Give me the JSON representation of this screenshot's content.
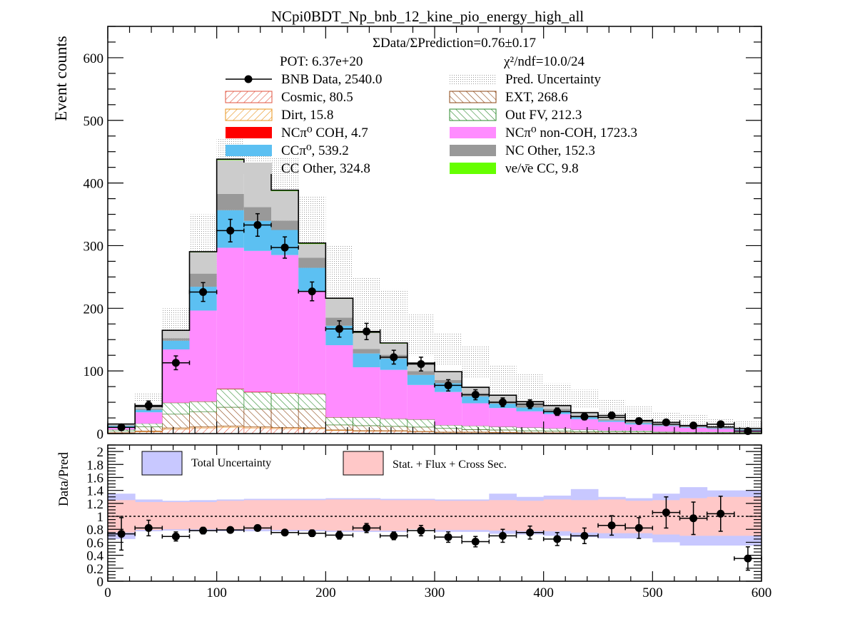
{
  "chart_data": [
    {
      "type": "bar",
      "stacked": true,
      "title": "NCpi0BDT_Np_bnb_12_kine_pio_energy_high_all",
      "ylabel": "Event counts",
      "xlim": [
        0,
        600
      ],
      "ylim": [
        0,
        650
      ],
      "x_ticks": [
        "0",
        "100",
        "200",
        "300",
        "400",
        "500",
        "600"
      ],
      "y_ticks": [
        "0",
        "100",
        "200",
        "300",
        "400",
        "500",
        "600"
      ],
      "bin_edges": [
        0,
        25,
        50,
        75,
        100,
        125,
        150,
        175,
        200,
        225,
        250,
        275,
        300,
        325,
        350,
        375,
        400,
        425,
        450,
        475,
        500,
        525,
        550,
        575,
        600
      ],
      "annotations": {
        "ratio": "ΣData/ΣPrediction=0.76±0.17",
        "pot": "POT: 6.37e+20",
        "chi2": "χ²/ndf=10.0/24"
      },
      "series": [
        {
          "name": "Cosmic, 80.5",
          "legend": "Cosmic, 80.5",
          "color": "#e0533f",
          "hatch": true,
          "values": [
            1,
            3,
            7,
            9,
            10,
            9,
            8,
            8,
            5,
            4,
            4,
            3,
            2,
            2,
            1.5,
            1.2,
            1,
            0.8,
            0.6,
            0.5,
            0.4,
            0.3,
            0.3,
            0.2
          ]
        },
        {
          "name": "Dirt, 15.8",
          "legend": "Dirt, 15.8",
          "color": "#e8941e",
          "hatch": true,
          "values": [
            0.3,
            1,
            2,
            2,
            2,
            2,
            1.5,
            1.2,
            0.8,
            0.6,
            0.5,
            0.4,
            0.3,
            0.3,
            0.2,
            0.2,
            0.1,
            0.1,
            0.1,
            0.1,
            0.1,
            0.1,
            0.1,
            0.1
          ]
        },
        {
          "name": "EXT, 268.6",
          "legend": "EXT, 268.6",
          "color": "#8b4513",
          "hatch": true,
          "values": [
            3,
            7,
            22,
            24,
            30,
            28,
            30,
            30,
            8,
            8,
            7,
            7,
            6,
            4,
            4,
            3,
            3,
            2,
            2,
            2,
            1.5,
            1,
            1,
            1
          ]
        },
        {
          "name": "Out FV, 212.3",
          "legend": "Out FV, 212.3",
          "color": "#2e8b2e",
          "hatch": true,
          "values": [
            2,
            5,
            18,
            16,
            29,
            27,
            25,
            24,
            12,
            13,
            12,
            12,
            5,
            6,
            5,
            5,
            4,
            3,
            2,
            2,
            1,
            1,
            1,
            1
          ]
        },
        {
          "name": "NCπ⁰ COH,  4.7",
          "legend": "NCπ⁰ COH,  4.7",
          "color": "#ff0000",
          "values": [
            0,
            0,
            0.3,
            0.4,
            0.6,
            0.6,
            0.5,
            0.4,
            0.3,
            0.3,
            0.2,
            0.2,
            0.1,
            0.1,
            0.1,
            0.1,
            0.1,
            0.1,
            0,
            0,
            0,
            0,
            0,
            0
          ]
        },
        {
          "name": "NCπ⁰ non-COH,  1723.3",
          "legend": "NCπ⁰ non-COH,  1723.3",
          "color": "#ff8cff",
          "values": [
            4,
            18,
            85,
            145,
            225,
            225,
            220,
            163,
            115,
            80,
            78,
            55,
            53,
            36,
            30,
            26,
            23,
            17,
            14,
            10,
            9,
            7,
            5,
            3
          ]
        },
        {
          "name": "CCπ⁰, 539.2",
          "legend": "CCπ⁰, 539.2",
          "color": "#5cc0f2",
          "values": [
            2,
            4,
            14,
            38,
            60,
            48,
            40,
            38,
            31,
            22,
            18,
            16,
            14,
            11,
            7,
            6,
            5,
            3,
            2,
            2,
            1,
            1,
            1,
            1
          ]
        },
        {
          "name": "NC Other, 152.3",
          "legend": "NC Other, 152.3",
          "color": "#999999",
          "values": [
            1,
            2,
            4,
            21,
            26,
            22,
            15,
            16,
            13,
            7,
            6,
            6,
            5,
            5,
            4,
            4,
            3,
            3,
            2,
            2,
            1,
            1,
            1,
            1
          ]
        },
        {
          "name": "CC Other, 324.8",
          "legend": "CC Other, 324.8",
          "color": "#cccccc",
          "values": [
            2,
            3,
            12,
            34,
            54,
            58,
            47,
            22,
            30,
            26,
            18,
            12,
            13,
            9,
            9,
            5,
            5,
            4,
            3,
            2,
            1,
            1,
            1,
            1
          ]
        },
        {
          "name": "νe/ν̄e CC, 9.8",
          "legend": "νe/ν̄e CC, 9.8",
          "color": "#66ff00",
          "values": [
            0,
            0.2,
            0.5,
            1,
            1.5,
            1.5,
            1.5,
            1.5,
            1,
            1,
            1,
            1,
            0.5,
            0.5,
            0.5,
            0.5,
            0.5,
            0.5,
            0.3,
            0.3,
            0.2,
            0.2,
            0.2,
            0.1
          ]
        }
      ],
      "uncertainty": {
        "name": "Pred. Uncertainty",
        "legend": "Pred. Uncertainty",
        "upper": [
          18,
          65,
          200,
          350,
          470,
          455,
          440,
          380,
          300,
          250,
          230,
          190,
          160,
          140,
          110,
          95,
          80,
          70,
          55,
          45,
          35,
          30,
          25,
          20
        ],
        "lower": [
          8,
          50,
          135,
          230,
          350,
          350,
          340,
          240,
          200,
          160,
          145,
          125,
          110,
          90,
          65,
          55,
          45,
          40,
          30,
          20,
          15,
          10,
          8,
          6
        ]
      },
      "data": {
        "name": "BNB Data, 2540.0",
        "legend": "BNB Data, 2540.0",
        "x": [
          12.5,
          37.5,
          62.5,
          87.5,
          112.5,
          137.5,
          162.5,
          187.5,
          212.5,
          237.5,
          262.5,
          287.5,
          312.5,
          337.5,
          362.5,
          387.5,
          412.5,
          437.5,
          462.5,
          487.5,
          512.5,
          537.5,
          562.5,
          587.5
        ],
        "y": [
          10,
          45,
          113,
          226,
          324,
          333,
          297,
          227,
          167,
          163,
          122,
          111,
          77,
          62,
          50,
          47,
          35,
          27,
          29,
          20,
          18,
          13,
          15,
          4
        ],
        "yerr": [
          3,
          7,
          11,
          15,
          18,
          18,
          17,
          15,
          13,
          13,
          11,
          11,
          9,
          8,
          7,
          7,
          6,
          5,
          5,
          4.5,
          4.5,
          3.5,
          3.9,
          2
        ]
      }
    },
    {
      "type": "scatter",
      "ylabel": "Data/Pred",
      "xlim": [
        0,
        600
      ],
      "ylim": [
        0,
        2.1
      ],
      "x_ticks": [
        "0",
        "100",
        "200",
        "300",
        "400",
        "500",
        "600"
      ],
      "y_ticks": [
        "0",
        "0.2",
        "0.4",
        "0.6",
        "0.8",
        "1",
        "1.2",
        "1.4",
        "1.6",
        "1.8",
        "2"
      ],
      "reference_line": 1,
      "bands": [
        {
          "name": "Total Uncertainty",
          "legend": "Total Uncertainty",
          "color": "#c8c8ff",
          "upper": [
            1.35,
            1.26,
            1.24,
            1.25,
            1.26,
            1.27,
            1.27,
            1.27,
            1.28,
            1.28,
            1.27,
            1.27,
            1.26,
            1.26,
            1.35,
            1.3,
            1.32,
            1.42,
            1.3,
            1.28,
            1.35,
            1.45,
            1.4,
            1.4
          ],
          "lower": [
            0.65,
            0.77,
            0.78,
            0.77,
            0.77,
            0.77,
            0.77,
            0.77,
            0.76,
            0.76,
            0.76,
            0.8,
            0.76,
            0.76,
            0.73,
            0.72,
            0.7,
            0.68,
            0.66,
            0.66,
            0.6,
            0.55,
            0.55,
            0.55
          ]
        },
        {
          "name": "Stat. + Flux + Cross Sec.",
          "legend": "Stat. + Flux + Cross Sec.",
          "color": "#ffc8c8",
          "upper": [
            1.25,
            1.22,
            1.22,
            1.22,
            1.24,
            1.25,
            1.25,
            1.25,
            1.26,
            1.26,
            1.25,
            1.25,
            1.24,
            1.24,
            1.25,
            1.24,
            1.26,
            1.25,
            1.26,
            1.24,
            1.25,
            1.28,
            1.3,
            1.3
          ],
          "lower": [
            0.75,
            0.79,
            0.8,
            0.8,
            0.8,
            0.8,
            0.79,
            0.79,
            0.78,
            0.78,
            0.78,
            0.8,
            0.79,
            0.79,
            0.78,
            0.77,
            0.77,
            0.75,
            0.74,
            0.74,
            0.72,
            0.7,
            0.7,
            0.7
          ]
        }
      ],
      "data": {
        "x": [
          12.5,
          37.5,
          62.5,
          87.5,
          112.5,
          137.5,
          162.5,
          187.5,
          212.5,
          237.5,
          262.5,
          287.5,
          312.5,
          337.5,
          362.5,
          387.5,
          412.5,
          437.5,
          462.5,
          487.5,
          512.5,
          537.5,
          562.5,
          587.5
        ],
        "y": [
          0.73,
          0.82,
          0.69,
          0.78,
          0.79,
          0.82,
          0.75,
          0.74,
          0.71,
          0.82,
          0.7,
          0.78,
          0.68,
          0.61,
          0.7,
          0.75,
          0.65,
          0.7,
          0.86,
          0.82,
          1.06,
          0.97,
          1.04,
          0.35
        ],
        "yerr": [
          0.25,
          0.12,
          0.07,
          0.05,
          0.04,
          0.04,
          0.04,
          0.05,
          0.06,
          0.07,
          0.06,
          0.08,
          0.08,
          0.08,
          0.1,
          0.1,
          0.1,
          0.12,
          0.15,
          0.16,
          0.24,
          0.25,
          0.27,
          0.18
        ]
      }
    }
  ]
}
